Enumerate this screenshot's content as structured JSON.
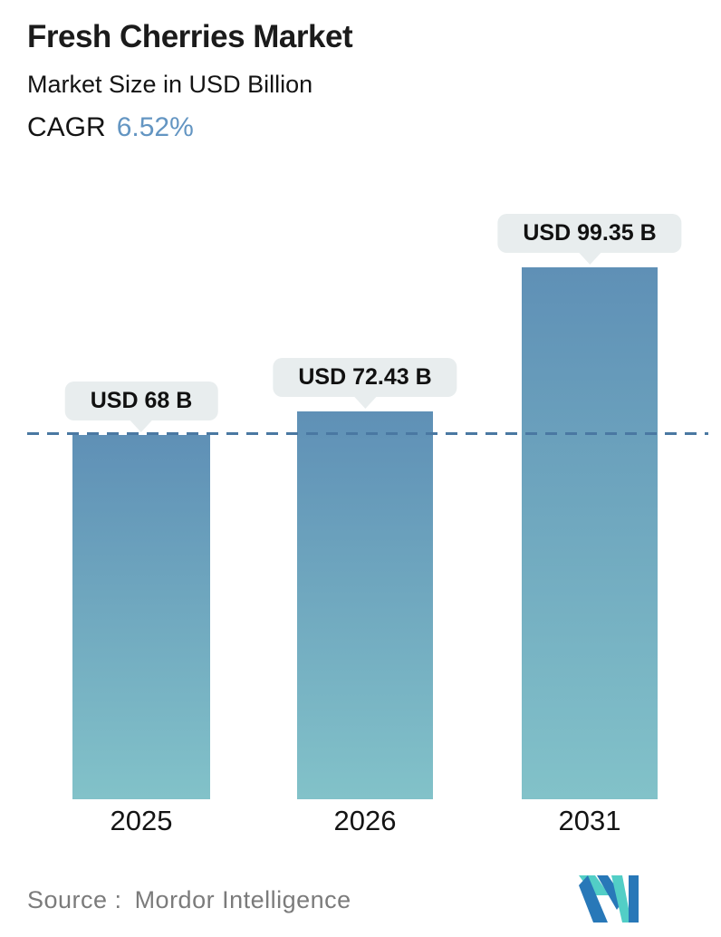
{
  "header": {
    "title": "Fresh Cherries Market",
    "subtitle": "Market Size in USD Billion",
    "cagr_label": "CAGR",
    "cagr_value": "6.52%"
  },
  "chart_data": {
    "type": "bar",
    "categories": [
      "2025",
      "2026",
      "2031"
    ],
    "values": [
      68,
      72.43,
      99.35
    ],
    "value_labels": [
      "USD 68 B",
      "USD 72.43 B",
      "USD 99.35 B"
    ],
    "title": "Fresh Cherries Market",
    "ylabel": "Market Size in USD Billion",
    "ylim": [
      0,
      100
    ],
    "grid": false,
    "legend": false,
    "reference_line": {
      "value": 68,
      "style": "dashed",
      "color": "#4a78a2"
    },
    "bar_gradient_top": "#5f90b6",
    "bar_gradient_bottom": "#82c2c9"
  },
  "footer": {
    "source_label": "Source :",
    "source_value": "Mordor Intelligence"
  },
  "colors": {
    "accent_blue": "#6395c2",
    "tooltip_bg": "#e8edee",
    "text_dark": "#1b1b1b",
    "source_gray": "#7b7b7b",
    "logo_blue": "#2878b8",
    "logo_teal": "#52cec6"
  }
}
